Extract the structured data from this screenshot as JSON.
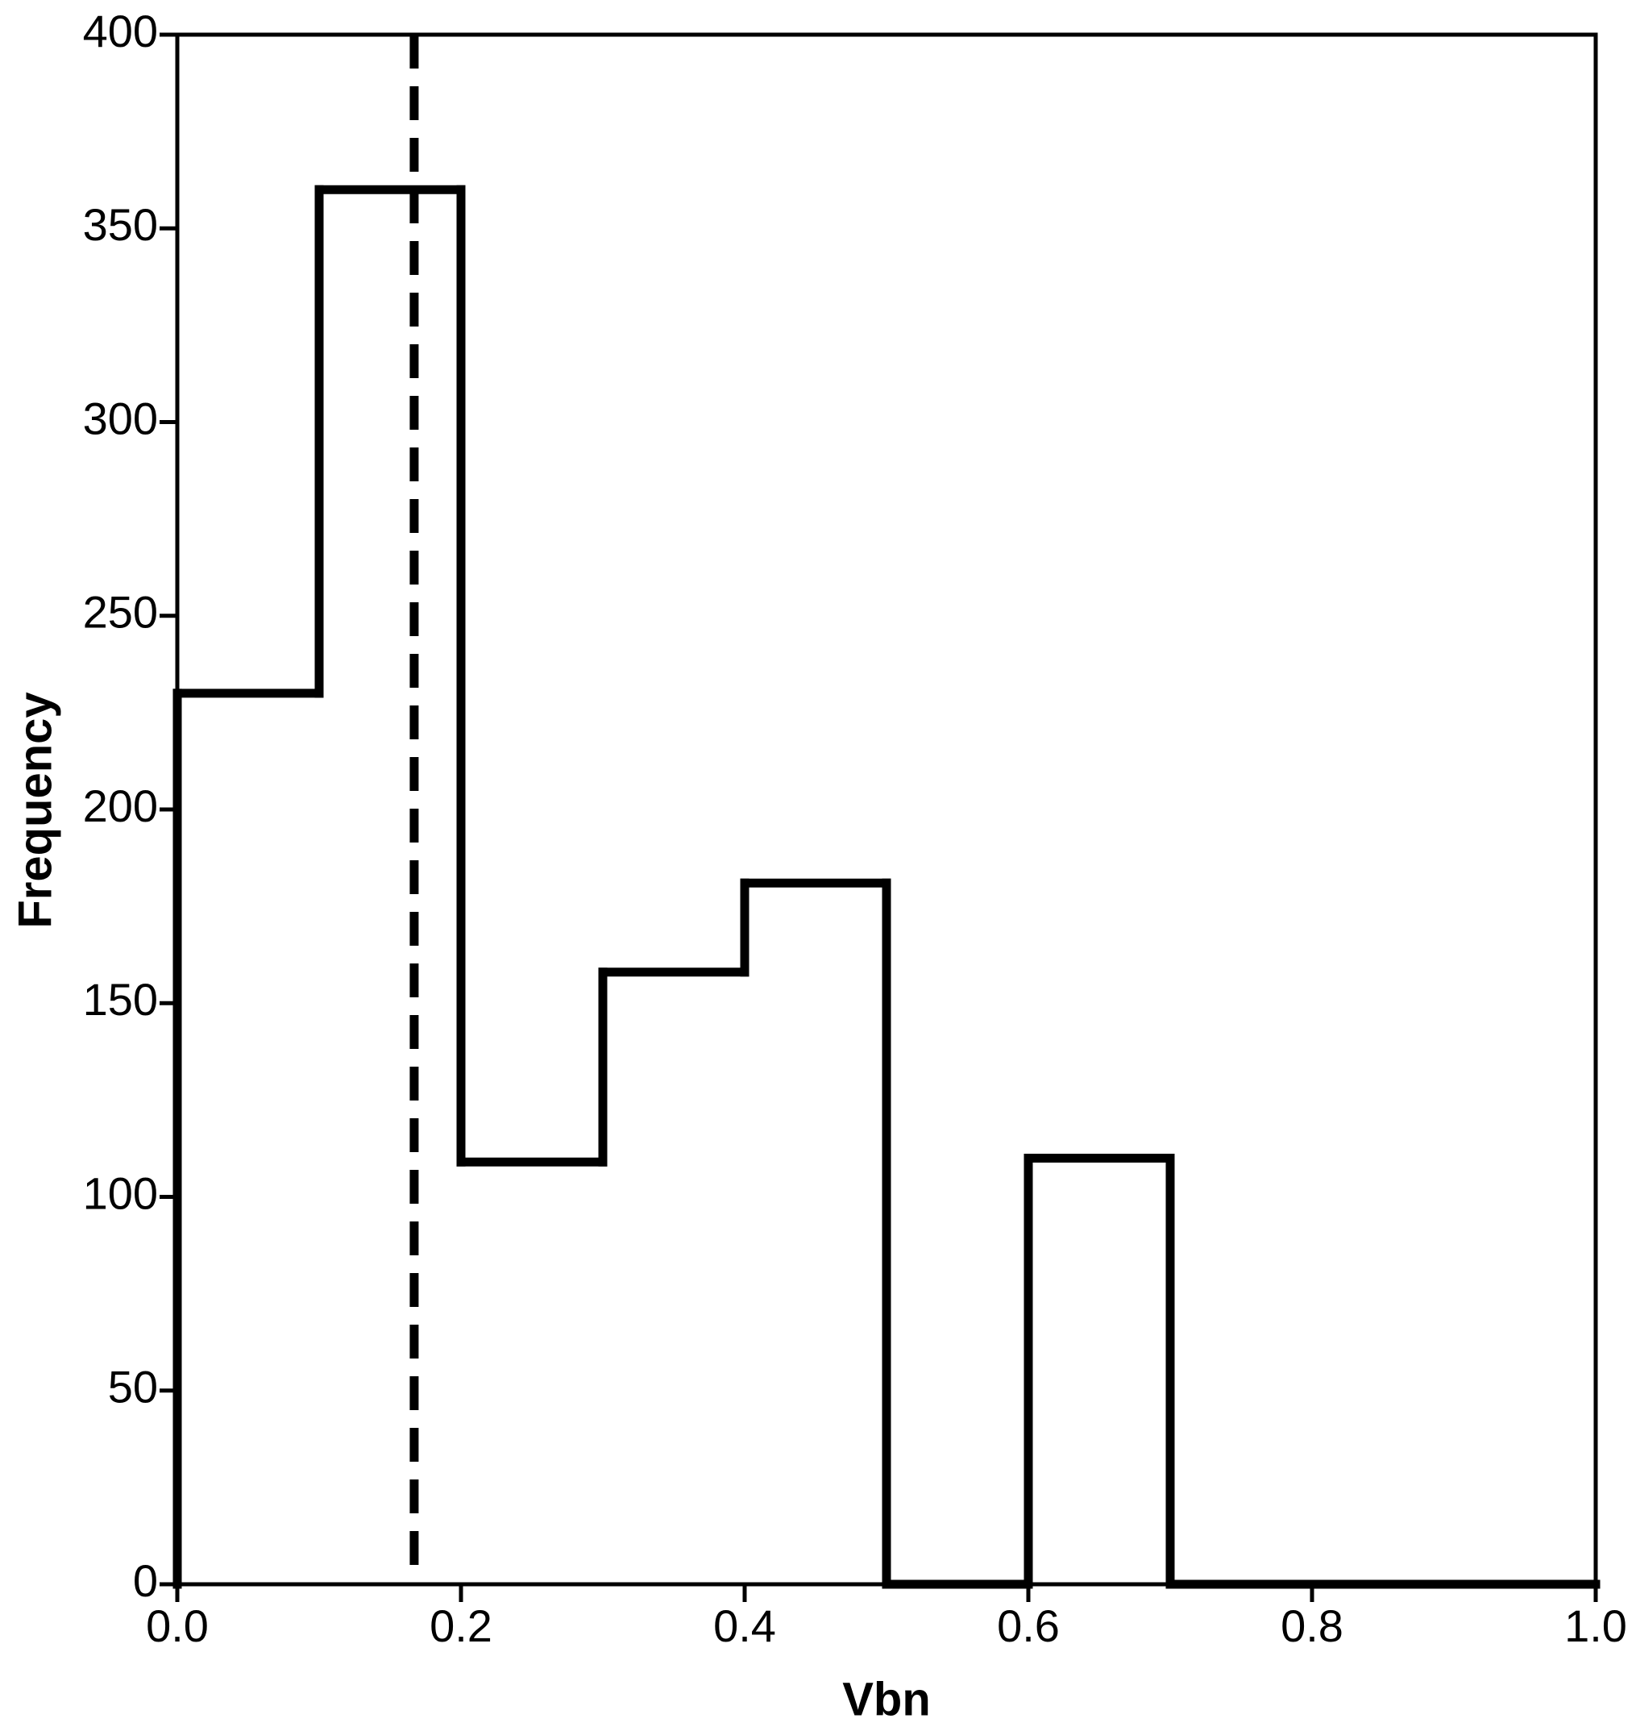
{
  "chart_data": {
    "type": "histogram",
    "xlabel": "Vbn",
    "ylabel": "Frequency",
    "bins": [
      0.0,
      0.1,
      0.2,
      0.3,
      0.4,
      0.5,
      0.6,
      0.7,
      0.8,
      0.9,
      1.0
    ],
    "values": [
      230,
      360,
      109,
      158,
      181,
      0,
      110,
      0,
      0,
      0
    ],
    "color": "#000000",
    "vline_x": 0.167,
    "xlim": [
      0.0,
      1.0
    ],
    "xticks": [
      {
        "value": 0.0,
        "label": "0.0"
      },
      0.2,
      0.4,
      0.6,
      0.8,
      {
        "value": 1.0,
        "label": "1.0"
      }
    ],
    "ylim": [
      0,
      400
    ],
    "yticks": [
      0,
      50,
      100,
      150,
      200,
      250,
      300,
      350,
      400
    ],
    "grid": false
  }
}
